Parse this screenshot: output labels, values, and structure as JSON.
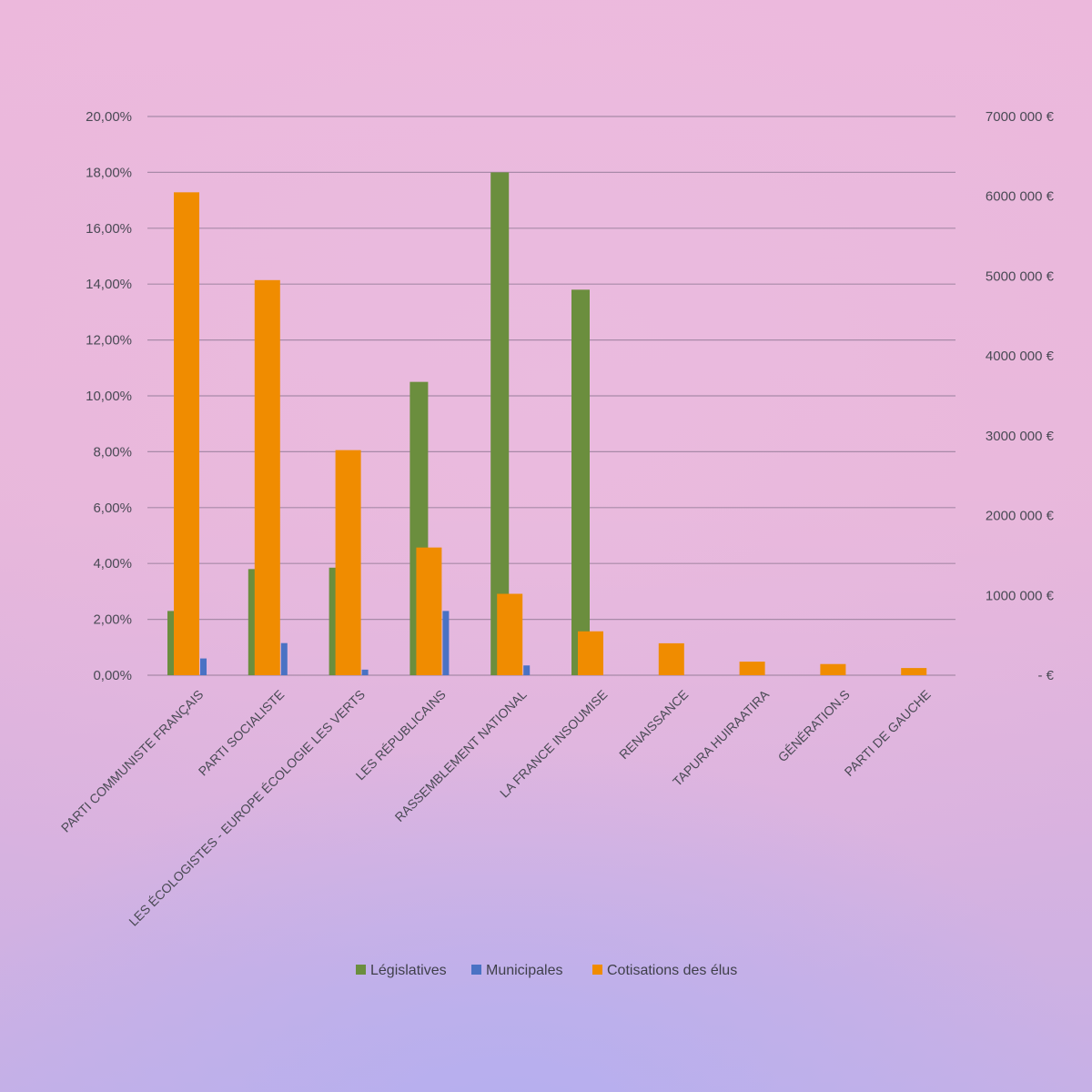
{
  "chart_data": {
    "type": "bar",
    "title": "",
    "categories": [
      "PARTI COMMUNISTE FRANÇAIS",
      "PARTI SOCIALISTE",
      "LES ÉCOLOGISTES - EUROPE ÉCOLOGIE LES VERTS",
      "LES RÉPUBLICAINS",
      "RASSEMBLEMENT NATIONAL",
      "LA FRANCE INSOUMISE",
      "RENAISSANCE",
      "TAPURA HUIRAATIRA",
      "GÉNÉRATION.S",
      "PARTI DE GAUCHE"
    ],
    "series": [
      {
        "name": "Législatives",
        "axis": "left",
        "color": "#6b8e3e",
        "values": [
          2.3,
          3.8,
          3.85,
          10.5,
          18.0,
          13.8,
          0,
          0,
          0,
          0
        ]
      },
      {
        "name": "Municipales",
        "axis": "left",
        "color": "#4a72c4",
        "values": [
          0.6,
          1.15,
          0.2,
          2.3,
          0.35,
          0,
          0,
          0,
          0,
          0
        ]
      },
      {
        "name": "Cotisations des élus",
        "axis": "right",
        "color": "#f08c00",
        "values": [
          6050000,
          4950000,
          2820000,
          1600000,
          1020000,
          550000,
          400000,
          170000,
          140000,
          90000
        ]
      }
    ],
    "y_left": {
      "min": 0,
      "max": 20,
      "tick_labels": [
        "0,00%",
        "2,00%",
        "4,00%",
        "6,00%",
        "8,00%",
        "10,00%",
        "12,00%",
        "14,00%",
        "16,00%",
        "18,00%",
        "20,00%"
      ]
    },
    "y_right": {
      "min": 0,
      "max": 7000000,
      "tick_labels": [
        "-   €",
        "1000 000 €",
        "2000 000 €",
        "3000 000 €",
        "4000 000 €",
        "5000 000 €",
        "6000 000 €",
        "7000 000 €"
      ]
    },
    "legend": {
      "position": "bottom",
      "items": [
        "Législatives",
        "Municipales",
        "Cotisations des élus"
      ]
    },
    "grid": true
  }
}
